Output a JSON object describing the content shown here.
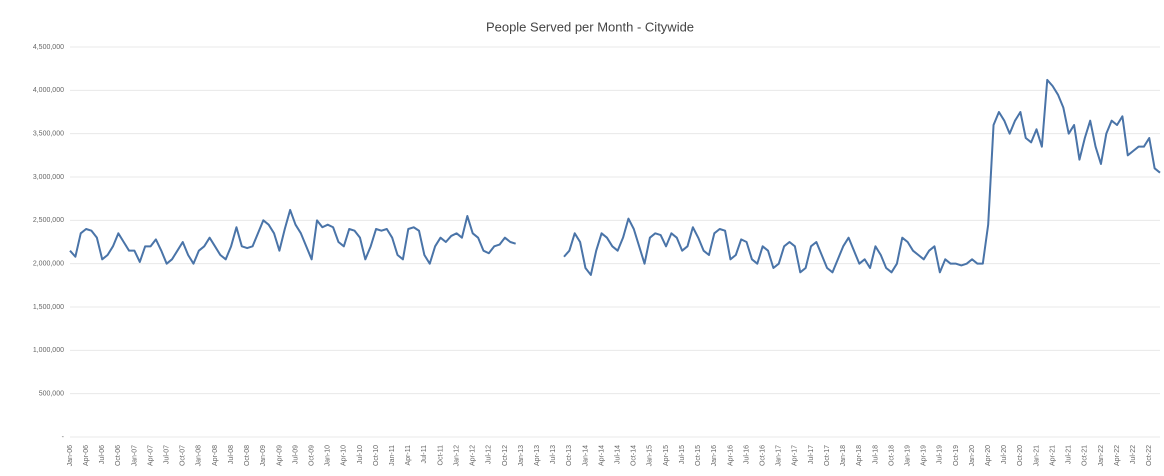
{
  "chart_data": {
    "type": "line",
    "title": "People Served per Month - Citywide",
    "categories": [
      "Jan-06",
      null,
      null,
      "Apr-06",
      null,
      null,
      "Jul-06",
      null,
      null,
      "Oct-06",
      null,
      null,
      "Jan-07",
      null,
      null,
      "Apr-07",
      null,
      null,
      "Jul-07",
      null,
      null,
      "Oct-07",
      null,
      null,
      "Jan-08",
      null,
      null,
      "Apr-08",
      null,
      null,
      "Jul-08",
      null,
      null,
      "Oct-08",
      null,
      null,
      "Jan-09",
      null,
      null,
      "Apr-09",
      null,
      null,
      "Jul-09",
      null,
      null,
      "Oct-09",
      null,
      null,
      "Jan-10",
      null,
      null,
      "Apr-10",
      null,
      null,
      "Jul-10",
      null,
      null,
      "Oct-10",
      null,
      null,
      "Jan-11",
      null,
      null,
      "Apr-11",
      null,
      null,
      "Jul-11",
      null,
      null,
      "Oct-11",
      null,
      null,
      "Jan-12",
      null,
      null,
      "Apr-12",
      null,
      null,
      "Jul-12",
      null,
      null,
      "Oct-12",
      null,
      null,
      "Jan-13",
      null,
      null,
      "Apr-13",
      null,
      null,
      "Jul-13",
      null,
      null,
      "Oct-13",
      null,
      null,
      "Jan-14",
      null,
      null,
      "Apr-14",
      null,
      null,
      "Jul-14",
      null,
      null,
      "Oct-14",
      null,
      null,
      "Jan-15",
      null,
      null,
      "Apr-15",
      null,
      null,
      "Jul-15",
      null,
      null,
      "Oct-15",
      null,
      null,
      "Jan-16",
      null,
      null,
      "Apr-16",
      null,
      null,
      "Jul-16",
      null,
      null,
      "Oct-16",
      null,
      null,
      "Jan-17",
      null,
      null,
      "Apr-17",
      null,
      null,
      "Jul-17",
      null,
      null,
      "Oct-17",
      null,
      null,
      "Jan-18",
      null,
      null,
      "Apr-18",
      null,
      null,
      "Jul-18",
      null,
      null,
      "Oct-18",
      null,
      null,
      "Jan-19",
      null,
      null,
      "Apr-19",
      null,
      null,
      "Jul-19",
      null,
      null,
      "Oct-19",
      null,
      null,
      "Jan-20",
      null,
      null,
      "Apr-20",
      null,
      null,
      "Jul-20",
      null,
      null,
      "Oct-20",
      null,
      null,
      "Jan-21",
      null,
      null,
      "Apr-21",
      null,
      null,
      "Jul-21",
      null,
      null,
      "Oct-21",
      null,
      null,
      "Jan-22",
      null,
      null,
      "Apr-22",
      null,
      null,
      "Jul-22",
      null,
      null,
      "Oct-22",
      null,
      null
    ],
    "values": [
      2150000,
      2080000,
      2350000,
      2400000,
      2380000,
      2300000,
      2050000,
      2100000,
      2200000,
      2350000,
      2250000,
      2150000,
      2150000,
      2020000,
      2200000,
      2200000,
      2280000,
      2150000,
      2000000,
      2050000,
      2150000,
      2250000,
      2100000,
      2000000,
      2150000,
      2200000,
      2300000,
      2200000,
      2100000,
      2050000,
      2200000,
      2420000,
      2200000,
      2180000,
      2200000,
      2350000,
      2500000,
      2450000,
      2350000,
      2150000,
      2400000,
      2620000,
      2450000,
      2350000,
      2200000,
      2050000,
      2500000,
      2420000,
      2450000,
      2420000,
      2250000,
      2200000,
      2400000,
      2380000,
      2300000,
      2050000,
      2200000,
      2400000,
      2380000,
      2400000,
      2300000,
      2100000,
      2050000,
      2400000,
      2420000,
      2380000,
      2100000,
      2000000,
      2200000,
      2300000,
      2250000,
      2320000,
      2350000,
      2300000,
      2550000,
      2350000,
      2300000,
      2150000,
      2120000,
      2200000,
      2220000,
      2300000,
      2250000,
      2230000,
      null,
      null,
      null,
      null,
      null,
      null,
      null,
      null,
      2080000,
      2150000,
      2350000,
      2250000,
      1950000,
      1870000,
      2150000,
      2350000,
      2300000,
      2200000,
      2150000,
      2300000,
      2520000,
      2400000,
      2200000,
      2000000,
      2300000,
      2350000,
      2330000,
      2200000,
      2350000,
      2300000,
      2150000,
      2200000,
      2420000,
      2300000,
      2150000,
      2100000,
      2350000,
      2400000,
      2380000,
      2050000,
      2100000,
      2280000,
      2250000,
      2050000,
      2000000,
      2200000,
      2150000,
      1950000,
      2000000,
      2200000,
      2250000,
      2200000,
      1900000,
      1950000,
      2200000,
      2250000,
      2100000,
      1950000,
      1900000,
      2050000,
      2200000,
      2300000,
      2150000,
      2000000,
      2050000,
      1950000,
      2200000,
      2100000,
      1950000,
      1900000,
      2000000,
      2300000,
      2250000,
      2150000,
      2100000,
      2050000,
      2150000,
      2200000,
      1900000,
      2050000,
      2000000,
      2000000,
      1980000,
      2000000,
      2050000,
      2000000,
      2000000,
      2450000,
      3600000,
      3750000,
      3650000,
      3500000,
      3650000,
      3750000,
      3450000,
      3400000,
      3550000,
      3350000,
      4120000,
      4050000,
      3950000,
      3800000,
      3500000,
      3600000,
      3200000,
      3450000,
      3650000,
      3350000,
      3150000,
      3500000,
      3650000,
      3600000,
      3700000,
      3250000,
      3300000,
      3350000,
      3350000,
      3450000,
      3100000,
      3050000
    ],
    "color": "#4a74a8",
    "ylim": [
      0,
      4500000
    ],
    "yticks": [
      {
        "value": 0,
        "label": "-"
      },
      {
        "value": 500000,
        "label": "500,000"
      },
      {
        "value": 1000000,
        "label": "1,000,000"
      },
      {
        "value": 1500000,
        "label": "1,500,000"
      },
      {
        "value": 2000000,
        "label": "2,000,000"
      },
      {
        "value": 2500000,
        "label": "2,500,000"
      },
      {
        "value": 3000000,
        "label": "3,000,000"
      },
      {
        "value": 3500000,
        "label": "3,500,000"
      },
      {
        "value": 4000000,
        "label": "4,000,000"
      },
      {
        "value": 4500000,
        "label": "4,500,000"
      }
    ],
    "grid": true
  }
}
